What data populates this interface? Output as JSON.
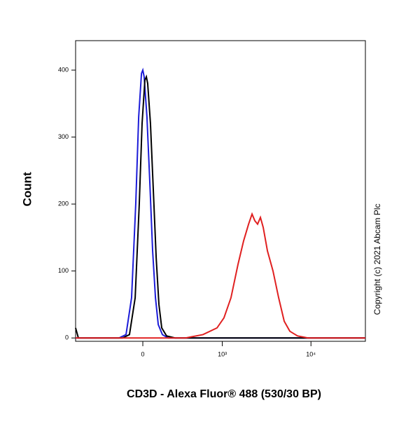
{
  "chart_data": {
    "type": "line",
    "x_label": "CD3D - Alexa Fluor® 488 (530/30 BP)",
    "y_label": "Count",
    "annotation": "Copyright (c) 2021 Abcam Plc",
    "xscale": "biexponential",
    "xlim": [
      -718,
      40700
    ],
    "ylim": [
      -5,
      444
    ],
    "xticks": [
      0,
      {
        "value": 1000,
        "label": "10³"
      },
      {
        "value": 10000,
        "label": "10⁴"
      }
    ],
    "yticks": [
      0,
      100,
      200,
      300,
      400
    ],
    "series": [
      {
        "color": "#1c1cd8",
        "x": [
          -718,
          -171,
          -117,
          -77,
          -48,
          -28,
          -9,
          0,
          9,
          28,
          48,
          67,
          87,
          107,
          138,
          183,
          40700
        ],
        "values": [
          0,
          0,
          5,
          60,
          200,
          330,
          395,
          400,
          390,
          330,
          230,
          130,
          60,
          20,
          5,
          0,
          0
        ]
      },
      {
        "color": "#000000",
        "x": [
          -718,
          -665,
          -143,
          -92,
          -52,
          -24,
          -5,
          14,
          24,
          33,
          52,
          72,
          92,
          112,
          133,
          171,
          244,
          40700
        ],
        "values": [
          15,
          0,
          0,
          5,
          60,
          200,
          320,
          385,
          390,
          380,
          320,
          220,
          120,
          50,
          15,
          3,
          0,
          0
        ]
      },
      {
        "color": "#e02020",
        "x": [
          -718,
          350,
          590,
          868,
          1045,
          1258,
          1514,
          1752,
          1994,
          2182,
          2345,
          2520,
          2712,
          2916,
          3251,
          3754,
          4344,
          5015,
          5800,
          7074,
          9275,
          40700
        ],
        "values": [
          0,
          0,
          5,
          15,
          30,
          60,
          110,
          145,
          170,
          185,
          175,
          170,
          180,
          165,
          130,
          100,
          60,
          25,
          10,
          3,
          0,
          0
        ]
      }
    ]
  }
}
